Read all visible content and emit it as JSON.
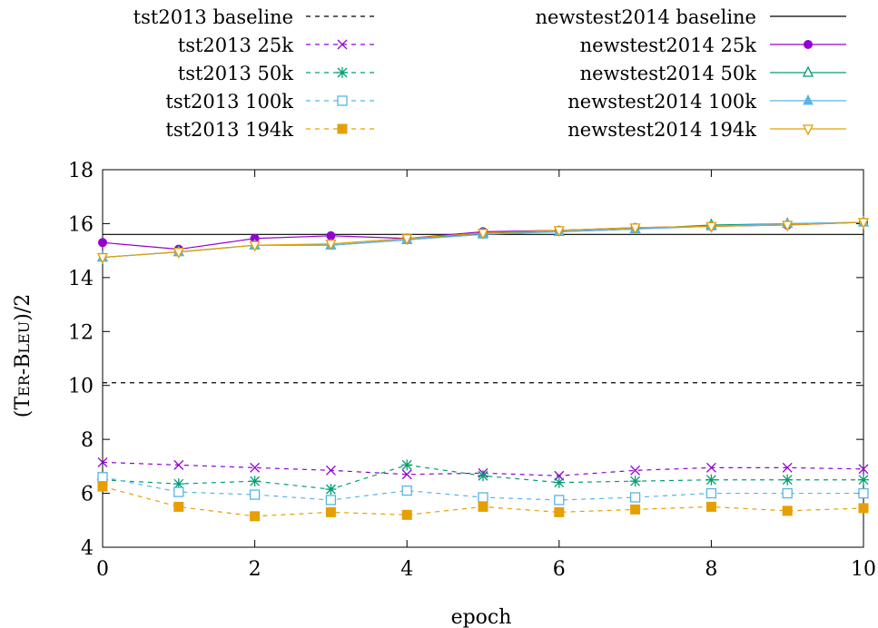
{
  "chart_data": {
    "type": "line",
    "xlabel": "epoch",
    "ylabel_parts": [
      "(T",
      "ER",
      "-B",
      "LEU",
      ")/2"
    ],
    "xlim": [
      0,
      10
    ],
    "ylim": [
      4,
      18
    ],
    "xticks": [
      0,
      2,
      4,
      6,
      8,
      10
    ],
    "yticks": [
      4,
      6,
      8,
      10,
      12,
      14,
      16,
      18
    ],
    "grid": false,
    "legend_position": "top, two columns",
    "x": [
      0,
      1,
      2,
      3,
      4,
      5,
      6,
      7,
      8,
      9,
      10
    ],
    "series": [
      {
        "name": "tst2013 baseline",
        "kind": "hline",
        "value": 10.1,
        "color": "#000000",
        "dash": true,
        "marker": "none"
      },
      {
        "name": "tst2013 25k",
        "color": "#9400d3",
        "dash": true,
        "marker": "x",
        "values": [
          7.15,
          7.05,
          6.95,
          6.85,
          6.7,
          6.75,
          6.65,
          6.85,
          6.95,
          6.95,
          6.9
        ]
      },
      {
        "name": "tst2013 50k",
        "color": "#009e73",
        "dash": true,
        "marker": "star",
        "values": [
          6.5,
          6.35,
          6.45,
          6.15,
          7.05,
          6.65,
          6.4,
          6.45,
          6.5,
          6.5,
          6.5
        ]
      },
      {
        "name": "tst2013 100k",
        "color": "#56b4e9",
        "dash": true,
        "marker": "square-open",
        "values": [
          6.6,
          6.05,
          5.95,
          5.75,
          6.1,
          5.85,
          5.75,
          5.85,
          6.0,
          6.0,
          6.0
        ]
      },
      {
        "name": "tst2013 194k",
        "color": "#e69f00",
        "dash": true,
        "marker": "square-filled",
        "values": [
          6.25,
          5.5,
          5.15,
          5.3,
          5.2,
          5.5,
          5.3,
          5.4,
          5.5,
          5.35,
          5.45
        ]
      },
      {
        "name": "newstest2014 baseline",
        "kind": "hline",
        "value": 15.6,
        "color": "#000000",
        "dash": false,
        "marker": "none"
      },
      {
        "name": "newstest2014 25k",
        "color": "#9400d3",
        "dash": false,
        "marker": "circle-filled",
        "values": [
          15.3,
          15.05,
          15.45,
          15.55,
          15.45,
          15.7,
          15.75,
          15.85,
          15.9,
          15.95,
          16.05
        ]
      },
      {
        "name": "newstest2014 50k",
        "color": "#009e73",
        "dash": false,
        "marker": "triangle-open",
        "values": [
          14.75,
          14.95,
          15.2,
          15.2,
          15.4,
          15.65,
          15.7,
          15.8,
          15.95,
          16.0,
          16.05
        ]
      },
      {
        "name": "newstest2014 100k",
        "color": "#56b4e9",
        "dash": false,
        "marker": "triangle-filled",
        "values": [
          14.75,
          14.95,
          15.2,
          15.2,
          15.4,
          15.6,
          15.7,
          15.8,
          15.9,
          16.0,
          16.05
        ]
      },
      {
        "name": "newstest2014 194k",
        "color": "#e69f00",
        "dash": false,
        "marker": "triangle-down-open",
        "values": [
          14.75,
          14.95,
          15.2,
          15.25,
          15.45,
          15.65,
          15.75,
          15.85,
          15.9,
          15.95,
          16.05
        ]
      }
    ]
  }
}
